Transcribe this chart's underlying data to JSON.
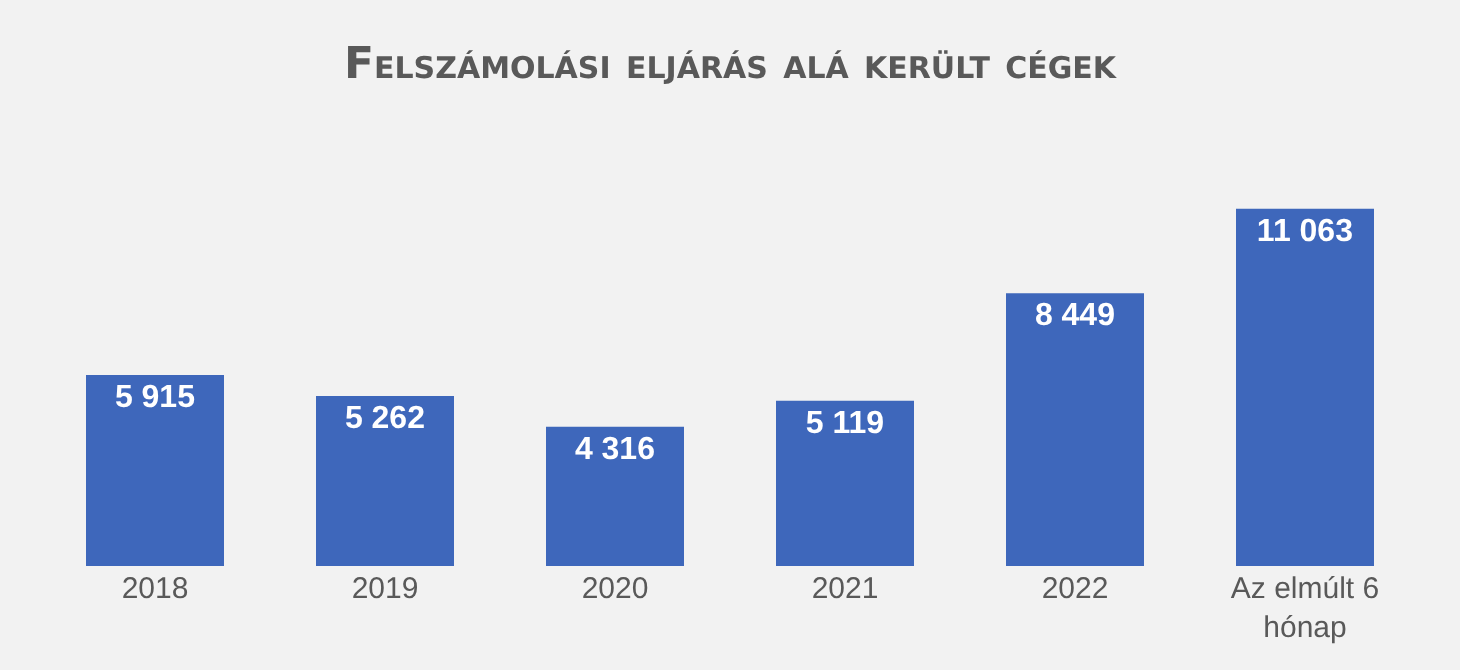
{
  "chart_data": {
    "type": "bar",
    "title": "Felszámolási eljárás alá került cégek",
    "categories": [
      "2018",
      "2019",
      "2020",
      "2021",
      "2022",
      "Az elmúlt 6 hónap"
    ],
    "values": [
      5915,
      5262,
      4316,
      5119,
      8449,
      11063
    ],
    "value_labels": [
      "5 915",
      "5 262",
      "4 316",
      "5 119",
      "8 449",
      "11 063"
    ],
    "color": "#3e67bb",
    "grid": false,
    "legend": false
  }
}
